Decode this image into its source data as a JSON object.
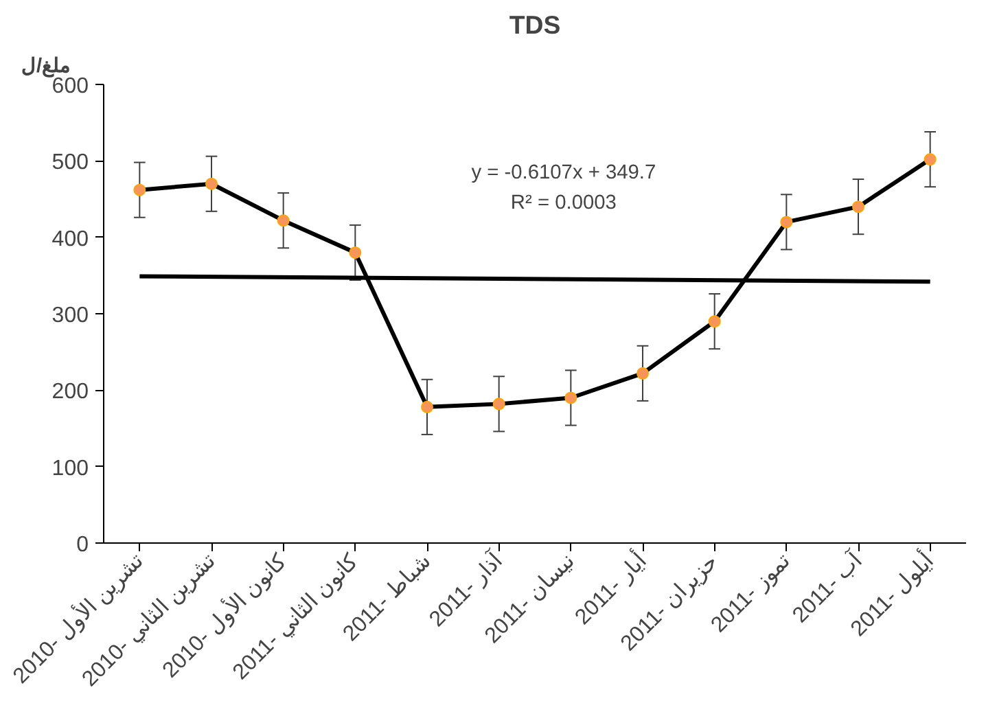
{
  "chart_data": {
    "type": "line",
    "title": "TDS",
    "ylabel": "ملغ/ل",
    "categories": [
      "2010- تشرين الأول",
      "2010- تشرين الثاني",
      "2010- كانون الأول",
      "2011- كانون الثاني",
      "2011- شباط",
      "2011- آذار",
      "2011- نيسان",
      "2011- أيار",
      "2011- حزيران",
      "2011- تموز",
      "2011- آب",
      "2011- أيلول"
    ],
    "series": [
      {
        "color": "#000000",
        "values": [
          462,
          470,
          422,
          380,
          178,
          182,
          190,
          222,
          290,
          420,
          440,
          502
        ],
        "errors": [
          36,
          36,
          36,
          36,
          36,
          36,
          36,
          36,
          36,
          36,
          36,
          36
        ],
        "colors": [
          "#f7945e",
          "#f7945e",
          "#f7945e",
          "#f7945e",
          "#f7945e",
          "#f7945e",
          "#f7945e",
          "#f7945e",
          "#f7945e",
          "#f7945e",
          "#f7945e",
          "#f7945e"
        ],
        "marker": "circle"
      },
      {
        "type": "line",
        "color": "#000000",
        "x": [
          "2010- تشرين الأول",
          "2011- أيلول"
        ],
        "values": [
          349,
          342
        ],
        "marker": "none"
      }
    ],
    "annotations": [
      "y = -0.6107x + 349.7",
      "R² = 0.0003"
    ],
    "ylim": [
      0,
      600
    ],
    "yticks": [
      0,
      100,
      200,
      300,
      400,
      500,
      600
    ],
    "grid": false
  }
}
